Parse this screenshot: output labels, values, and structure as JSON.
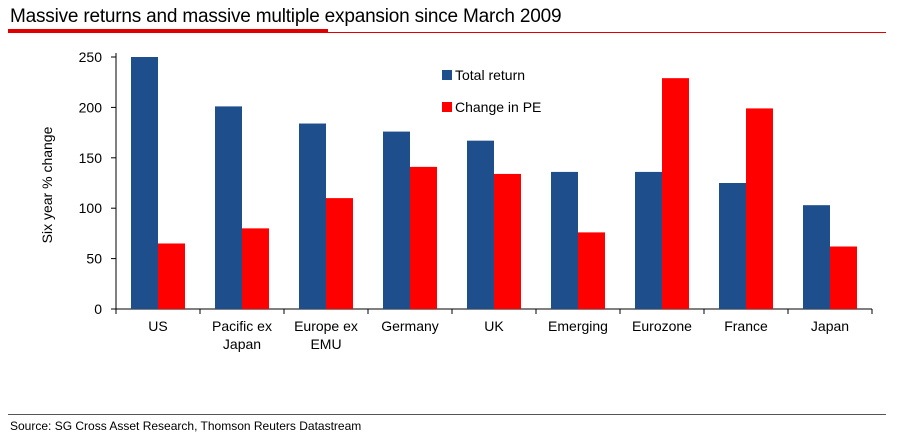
{
  "header": {
    "title": "Massive returns and massive multiple expansion since March 2009"
  },
  "footer": {
    "source": "Source: SG Cross Asset Research, Thomson Reuters Datastream"
  },
  "colors": {
    "total_return": "#1f4e8c",
    "change_in_pe": "#ff0000",
    "accent": "#e00000"
  },
  "chart_data": {
    "type": "bar",
    "title": "Massive returns and massive multiple expansion since March 2009",
    "xlabel": "",
    "ylabel": "Six year % change",
    "ylim": [
      0,
      250
    ],
    "yticks": [
      0,
      50,
      100,
      150,
      200,
      250
    ],
    "categories": [
      [
        "US"
      ],
      [
        "Pacific ex",
        "Japan"
      ],
      [
        "Europe ex",
        "EMU"
      ],
      [
        "Germany"
      ],
      [
        "UK"
      ],
      [
        "Emerging"
      ],
      [
        "Eurozone"
      ],
      [
        "France"
      ],
      [
        "Japan"
      ]
    ],
    "series": [
      {
        "name": "Total return",
        "values": [
          250,
          201,
          184,
          176,
          167,
          136,
          136,
          125,
          103
        ]
      },
      {
        "name": "Change in PE",
        "values": [
          65,
          80,
          110,
          141,
          134,
          76,
          229,
          199,
          62
        ]
      }
    ],
    "legend": "top-center",
    "grid": false
  }
}
